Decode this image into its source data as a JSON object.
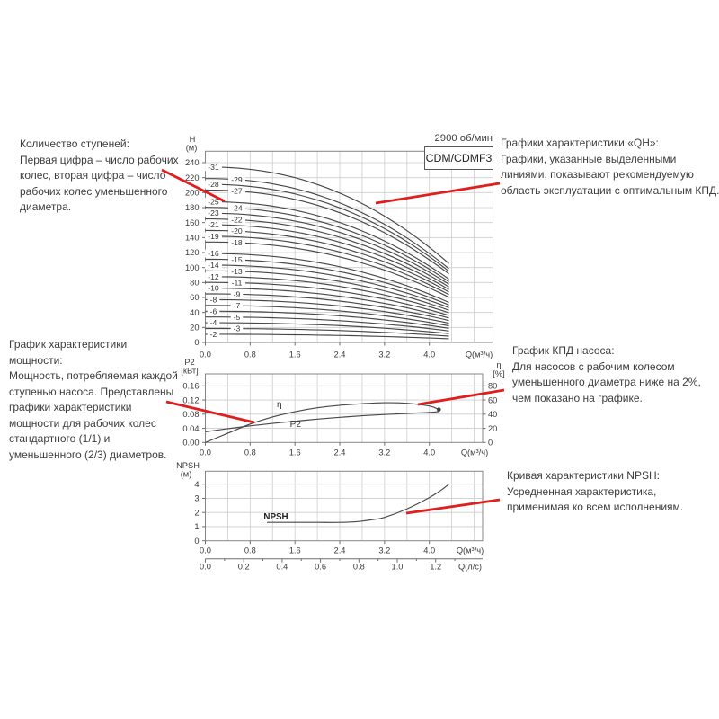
{
  "header": {
    "rpm": "2900 об/мин",
    "model": "CDM/CDMF3"
  },
  "annotations": {
    "stages": {
      "title": "Количество ступеней:",
      "body": "Первая цифра – число рабочих колес, вторая цифра – число рабочих колес уменьшенного диаметра."
    },
    "qh": {
      "title": "Графики характеристики «QH»:",
      "body": "Графики, указанные выделенными линиями, показывают рекомендуемую область эксплуатации с оптимальным КПД."
    },
    "power": {
      "title": "График характеристики мощности:",
      "body": "Мощность, потребляемая каждой ступенью насоса. Представлены графики характеристики мощности для рабочих колес стандартного (1/1) и уменьшенного (2/3) диаметров."
    },
    "efficiency": {
      "title": "График КПД насоса:",
      "body": "Для насосов с рабочим колесом уменьшенного диаметра ниже на 2%, чем показано на графике."
    },
    "npsh": {
      "title": "Кривая характеристики NPSH:",
      "body": "Усредненная характеристика, применимая ко всем исполнениям."
    }
  },
  "chart_data": [
    {
      "id": "qh",
      "type": "line",
      "title": "QH характеристики, 2900 об/мин, CDM/CDMF3",
      "xlabel": "Q(м³/ч)",
      "ylabel_lines": [
        "H",
        "(м)"
      ],
      "xticks": [
        "0.0",
        "0.8",
        "1.6",
        "2.4",
        "3.2",
        "4.0"
      ],
      "yticks": [
        "0",
        "20",
        "40",
        "60",
        "80",
        "100",
        "120",
        "140",
        "160",
        "180",
        "200",
        "220",
        "240"
      ],
      "xlim": [
        0,
        5.13
      ],
      "ylim": [
        0,
        255
      ],
      "grid": true,
      "q_end": 4.35,
      "droop_exponent": 2.2,
      "series": [
        {
          "label": "-31",
          "stages": 31,
          "shutoff_head_m": 234.2,
          "end_head_m": 105.4,
          "label_col": 1
        },
        {
          "label": "-29",
          "stages": 29,
          "shutoff_head_m": 218.8,
          "end_head_m": 98.5,
          "label_col": 2
        },
        {
          "label": "-28",
          "stages": 28,
          "shutoff_head_m": 211.1,
          "end_head_m": 95.0,
          "label_col": 1
        },
        {
          "label": "-27",
          "stages": 27,
          "shutoff_head_m": 203.4,
          "end_head_m": 91.5,
          "label_col": 2
        },
        {
          "label": "-25",
          "stages": 25,
          "shutoff_head_m": 188.0,
          "end_head_m": 84.6,
          "label_col": 1
        },
        {
          "label": "-24",
          "stages": 24,
          "shutoff_head_m": 180.3,
          "end_head_m": 81.1,
          "label_col": 2
        },
        {
          "label": "-23",
          "stages": 23,
          "shutoff_head_m": 172.6,
          "end_head_m": 77.7,
          "label_col": 1
        },
        {
          "label": "-22",
          "stages": 22,
          "shutoff_head_m": 164.9,
          "end_head_m": 74.2,
          "label_col": 2
        },
        {
          "label": "-21",
          "stages": 21,
          "shutoff_head_m": 157.2,
          "end_head_m": 70.7,
          "label_col": 1
        },
        {
          "label": "-20",
          "stages": 20,
          "shutoff_head_m": 149.5,
          "end_head_m": 67.3,
          "label_col": 2
        },
        {
          "label": "-19",
          "stages": 19,
          "shutoff_head_m": 141.8,
          "end_head_m": 63.8,
          "label_col": 1
        },
        {
          "label": "-18",
          "stages": 18,
          "shutoff_head_m": 134.1,
          "end_head_m": 60.3,
          "label_col": 2
        },
        {
          "label": "-16",
          "stages": 16,
          "shutoff_head_m": 118.7,
          "end_head_m": 53.4,
          "label_col": 1
        },
        {
          "label": "-15",
          "stages": 15,
          "shutoff_head_m": 111.0,
          "end_head_m": 50.0,
          "label_col": 2
        },
        {
          "label": "-14",
          "stages": 14,
          "shutoff_head_m": 103.3,
          "end_head_m": 46.5,
          "label_col": 1
        },
        {
          "label": "-13",
          "stages": 13,
          "shutoff_head_m": 95.6,
          "end_head_m": 43.0,
          "label_col": 2
        },
        {
          "label": "-12",
          "stages": 12,
          "shutoff_head_m": 87.9,
          "end_head_m": 39.6,
          "label_col": 1
        },
        {
          "label": "-11",
          "stages": 11,
          "shutoff_head_m": 80.2,
          "end_head_m": 36.1,
          "label_col": 2
        },
        {
          "label": "-10",
          "stages": 10,
          "shutoff_head_m": 72.5,
          "end_head_m": 32.6,
          "label_col": 1
        },
        {
          "label": "-9",
          "stages": 9,
          "shutoff_head_m": 64.8,
          "end_head_m": 29.2,
          "label_col": 2
        },
        {
          "label": "-8",
          "stages": 8,
          "shutoff_head_m": 57.1,
          "end_head_m": 25.7,
          "label_col": 1
        },
        {
          "label": "-7",
          "stages": 7,
          "shutoff_head_m": 49.4,
          "end_head_m": 22.2,
          "label_col": 2
        },
        {
          "label": "-6",
          "stages": 6,
          "shutoff_head_m": 41.7,
          "end_head_m": 18.8,
          "label_col": 1
        },
        {
          "label": "-5",
          "stages": 5,
          "shutoff_head_m": 34.0,
          "end_head_m": 15.3,
          "label_col": 2
        },
        {
          "label": "-4",
          "stages": 4,
          "shutoff_head_m": 26.3,
          "end_head_m": 11.8,
          "label_col": 1
        },
        {
          "label": "-3",
          "stages": 3,
          "shutoff_head_m": 18.6,
          "end_head_m": 8.4,
          "label_col": 2
        },
        {
          "label": "-2",
          "stages": 2,
          "shutoff_head_m": 10.9,
          "end_head_m": 4.9,
          "label_col": 1
        }
      ]
    },
    {
      "id": "power-efficiency",
      "type": "line",
      "xlabel": "Q(м³/ч)",
      "ylabel_left_lines": [
        "P2",
        "[кВт]"
      ],
      "ylabel_right_lines": [
        "η",
        "[%]"
      ],
      "xticks": [
        "0.0",
        "0.8",
        "1.6",
        "2.4",
        "3.2",
        "4.0"
      ],
      "yticks_left": [
        "0.00",
        "0.04",
        "0.08",
        "0.12",
        "0.16"
      ],
      "yticks_right": [
        "0",
        "20",
        "40",
        "60",
        "80"
      ],
      "xlim": [
        0,
        4.95
      ],
      "ylim_left": [
        0,
        0.195
      ],
      "ylim_right": [
        0,
        97
      ],
      "grid": true,
      "series": [
        {
          "name": "η",
          "axis": "right",
          "label": "η",
          "label_at": [
            1.32,
            54
          ],
          "end_marker": true,
          "x": [
            0,
            0.4,
            0.8,
            1.2,
            1.6,
            2.0,
            2.4,
            2.8,
            3.2,
            3.6,
            4.0,
            4.17
          ],
          "y": [
            0,
            13,
            26,
            36,
            43.5,
            49,
            52.5,
            54.8,
            56.2,
            55.4,
            51.5,
            46.5
          ]
        },
        {
          "name": "P2",
          "axis": "left",
          "label": "P2",
          "label_at": [
            1.61,
            0.052
          ],
          "x": [
            0,
            0.4,
            0.8,
            1.2,
            1.6,
            2.0,
            2.4,
            2.8,
            3.2,
            3.6,
            4.0,
            4.17
          ],
          "y": [
            0.03,
            0.039,
            0.047,
            0.054,
            0.06,
            0.066,
            0.071,
            0.0755,
            0.079,
            0.082,
            0.085,
            0.0875
          ]
        }
      ]
    },
    {
      "id": "npsh",
      "type": "line",
      "xlabel": "Q(м³/ч)",
      "xlabel2": "Q(л/с)",
      "ylabel_lines": [
        "NPSH",
        "(м)"
      ],
      "xticks": [
        "0.0",
        "0.8",
        "1.6",
        "2.4",
        "3.2",
        "4.0"
      ],
      "yticks": [
        "0",
        "1",
        "2",
        "3",
        "4"
      ],
      "xticks2": [
        "0.0",
        "0.2",
        "0.4",
        "0.6",
        "0.8",
        "1.0",
        "1.2"
      ],
      "xlim": [
        0,
        4.95
      ],
      "ylim": [
        0,
        4.9
      ],
      "grid": true,
      "series": [
        {
          "name": "NPSH",
          "label": "NPSH",
          "label_at": [
            1.26,
            1.7
          ],
          "x": [
            1.1,
            1.6,
            2.0,
            2.4,
            2.7,
            3.0,
            3.2,
            3.6,
            4.0,
            4.2,
            4.35
          ],
          "y": [
            1.3,
            1.3,
            1.3,
            1.3,
            1.35,
            1.5,
            1.65,
            2.25,
            3.05,
            3.55,
            4.0
          ]
        }
      ]
    }
  ],
  "callout_lines": [
    {
      "name": "stages-text-to-curve-label",
      "from": [
        180,
        189
      ],
      "to": [
        250,
        224
      ]
    },
    {
      "name": "qh-curve-to-text",
      "from": [
        418,
        226
      ],
      "to": [
        556,
        204
      ]
    },
    {
      "name": "power-text-to-curve",
      "from": [
        185,
        447
      ],
      "to": [
        283,
        470
      ]
    },
    {
      "name": "eta-curve-to-text",
      "from": [
        465,
        450
      ],
      "to": [
        561,
        434
      ]
    },
    {
      "name": "npsh-curve-to-text",
      "from": [
        452,
        571
      ],
      "to": [
        556,
        556
      ]
    }
  ],
  "colors": {
    "callout": "#e01e1e",
    "curve": "#484848",
    "grid": "#cdcdcd",
    "frame": "#878787"
  }
}
